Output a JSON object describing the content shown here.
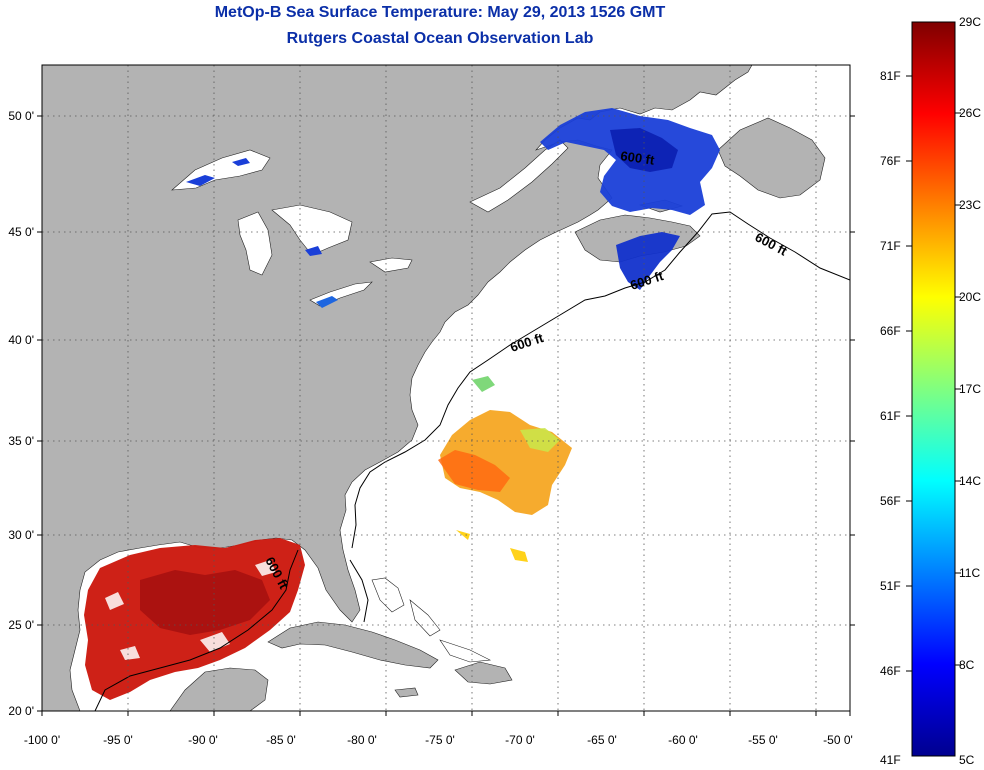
{
  "title": "MetOp-B Sea Surface Temperature:  May 29, 2013 1526 GMT",
  "subtitle": "Rutgers Coastal Ocean Observation Lab",
  "map": {
    "lon_ticks": [
      "-100 0'",
      "-95 0'",
      "-90 0'",
      "-85 0'",
      "-80 0'",
      "-75 0'",
      "-70 0'",
      "-65 0'",
      "-60 0'",
      "-55 0'",
      "-50 0'"
    ],
    "lat_ticks": [
      "50 0'",
      "45 0'",
      "40 0'",
      "35 0'",
      "30 0'",
      "25 0'",
      "20 0'"
    ],
    "contour_label": "600 ft",
    "contour_labels": [
      {
        "id": "c1",
        "text": "600 ft"
      },
      {
        "id": "c2",
        "text": "600 ft"
      },
      {
        "id": "c3",
        "text": "600 ft"
      },
      {
        "id": "c4",
        "text": "600 ft"
      },
      {
        "id": "c5",
        "text": "600 ft"
      }
    ],
    "colors": {
      "land": "#b3b3b3",
      "ocean_nodata": "#ffffff",
      "grid": "#555555"
    }
  },
  "colorbar": {
    "celsius": [
      "29C",
      "26C",
      "23C",
      "20C",
      "17C",
      "14C",
      "11C",
      "8C",
      "5C"
    ],
    "fahrenheit": [
      "81F",
      "76F",
      "71F",
      "66F",
      "61F",
      "56F",
      "51F",
      "46F",
      "41F"
    ],
    "colors": [
      "#7f0000",
      "#ff0000",
      "#ff8000",
      "#ffff00",
      "#80ff80",
      "#00ffff",
      "#0080ff",
      "#0000ff",
      "#00008f"
    ]
  }
}
